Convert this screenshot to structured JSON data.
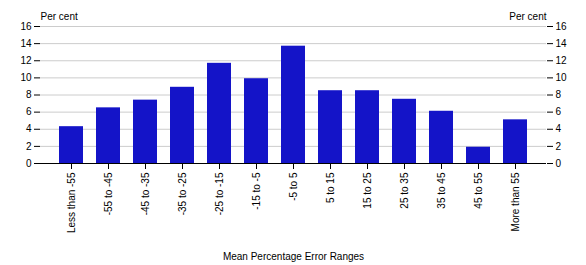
{
  "chart_data": {
    "type": "bar",
    "categories": [
      "Less than -55",
      "-55 to -45",
      "-45 to -35",
      "-35 to -25",
      "-25 to -15",
      "-15 to -5",
      "-5 to 5",
      "5 to 15",
      "15 to 25",
      "25 to 35",
      "35 to 45",
      "45 to 55",
      "More than 55"
    ],
    "values": [
      4.3,
      6.5,
      7.4,
      8.9,
      11.7,
      9.9,
      13.7,
      8.5,
      8.5,
      7.5,
      6.1,
      1.9,
      5.1
    ],
    "color": "#1414c8",
    "xlabel": "Mean Percentage Error Ranges",
    "ylabel": "Per cent",
    "y2label": "Per cent",
    "ylim": [
      0,
      16
    ],
    "yticks": [
      0,
      2,
      4,
      6,
      8,
      10,
      12,
      14,
      16
    ],
    "y2lim": [
      0,
      16
    ],
    "y2ticks": [
      0,
      2,
      4,
      6,
      8,
      10,
      12,
      14,
      16
    ],
    "grid": true
  }
}
